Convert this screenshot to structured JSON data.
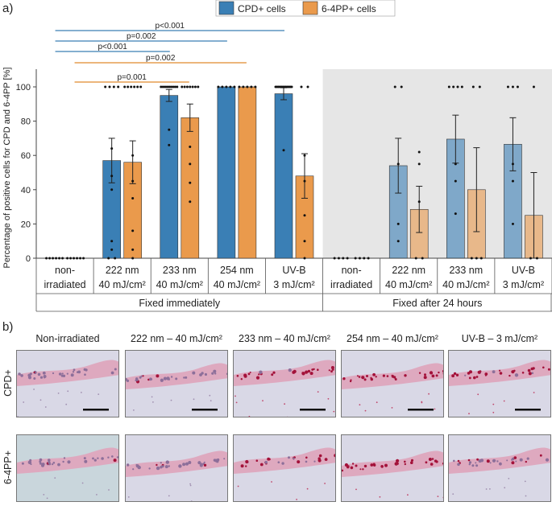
{
  "panel_a_label": "a)",
  "panel_b_label": "b)",
  "chart_data": {
    "type": "bar",
    "ylabel": "Percentage of positive cells for CPD and 6-4PP [%]",
    "ylim": [
      0,
      110
    ],
    "yticks": [
      0,
      20,
      40,
      60,
      80,
      100
    ],
    "legend": [
      {
        "name": "CPD+ cells",
        "color": "#3a7fb5"
      },
      {
        "name": "6-4PP+ cells",
        "color": "#ea9a4c"
      }
    ],
    "legend_position": "top-right",
    "categories": [
      {
        "line1": "non-",
        "line2": "irradiated",
        "group": 0
      },
      {
        "line1": "222 nm",
        "line2": "40 mJ/cm²",
        "group": 0
      },
      {
        "line1": "233 nm",
        "line2": "40 mJ/cm²",
        "group": 0
      },
      {
        "line1": "254 nm",
        "line2": "40 mJ/cm²",
        "group": 0
      },
      {
        "line1": "UV-B",
        "line2": "3 mJ/cm²",
        "group": 0
      },
      {
        "line1": "non-",
        "line2": "irradiated",
        "group": 1
      },
      {
        "line1": "222 nm",
        "line2": "40 mJ/cm²",
        "group": 1
      },
      {
        "line1": "233 nm",
        "line2": "40 mJ/cm²",
        "group": 1
      },
      {
        "line1": "UV-B",
        "line2": "3 mJ/cm²",
        "group": 1
      }
    ],
    "groups": [
      "Fixed immediately",
      "Fixed after 24 hours"
    ],
    "series": [
      {
        "name": "CPD+ cells",
        "values": [
          0,
          57,
          95,
          100,
          96,
          0,
          54,
          69.5,
          66.5
        ],
        "err": [
          0,
          13,
          3.5,
          0,
          3.5,
          0,
          16,
          14,
          15.5
        ],
        "points": [
          [
            0,
            0,
            0,
            0,
            0,
            0
          ],
          [
            100,
            100,
            100,
            100,
            64,
            48,
            40,
            10,
            5,
            0,
            0
          ],
          [
            100,
            100,
            100,
            100,
            100,
            100,
            100,
            100,
            100,
            75,
            66
          ],
          [
            100,
            100,
            100,
            100,
            100
          ],
          [
            100,
            100,
            100,
            100,
            100,
            100,
            100,
            100,
            100,
            100,
            100,
            100,
            63
          ],
          [
            0,
            0,
            0,
            0
          ],
          [
            100,
            100,
            55,
            20,
            10
          ],
          [
            100,
            100,
            100,
            100,
            55,
            45,
            26
          ],
          [
            100,
            100,
            100,
            55,
            45,
            20
          ]
        ]
      },
      {
        "name": "6-4PP+ cells",
        "values": [
          0,
          56,
          82,
          100,
          48,
          0,
          28.5,
          40,
          25
        ],
        "err": [
          0,
          12.5,
          8,
          0,
          13,
          0,
          13.5,
          24.5,
          25
        ],
        "points": [
          [
            0,
            0,
            0,
            0,
            0,
            0
          ],
          [
            100,
            100,
            100,
            100,
            100,
            100,
            60,
            45,
            35,
            16,
            5,
            0
          ],
          [
            100,
            100,
            100,
            100,
            100,
            100,
            100,
            65,
            55,
            44,
            33
          ],
          [
            100,
            100,
            100,
            100,
            100
          ],
          [
            100,
            100,
            60,
            45,
            25,
            10,
            0
          ],
          [
            0,
            0,
            0,
            0
          ],
          [
            62,
            55,
            33,
            0,
            0
          ],
          [
            100,
            100,
            0,
            0,
            0
          ],
          [
            100,
            0,
            0
          ]
        ]
      }
    ],
    "significance": [
      {
        "label": "p<0.001",
        "from": 0,
        "to": 4,
        "color": "#3a7fb5"
      },
      {
        "label": "p=0.002",
        "from": 0,
        "to": 3,
        "color": "#3a7fb5"
      },
      {
        "label": "p<0.001",
        "from": 0,
        "to": 2,
        "color": "#3a7fb5"
      },
      {
        "label": "p=0.002",
        "from": 0,
        "to": 3,
        "color": "#e08a2c"
      },
      {
        "label": "p=0.001",
        "from": 0,
        "to": 2,
        "color": "#e08a2c"
      }
    ]
  },
  "micrographs": {
    "columns": [
      "Non-irradiated",
      "222 nm – 40 mJ/cm²",
      "233 nm – 40 mJ/cm²",
      "254 nm – 40 mJ/cm²",
      "UV-B – 3 mJ/cm²"
    ],
    "rows": [
      "CPD+",
      "6-4PP+"
    ],
    "stain_levels": [
      [
        0.03,
        0.18,
        0.9,
        1.0,
        0.85
      ],
      [
        0.06,
        0.12,
        0.75,
        1.0,
        0.3
      ]
    ]
  }
}
